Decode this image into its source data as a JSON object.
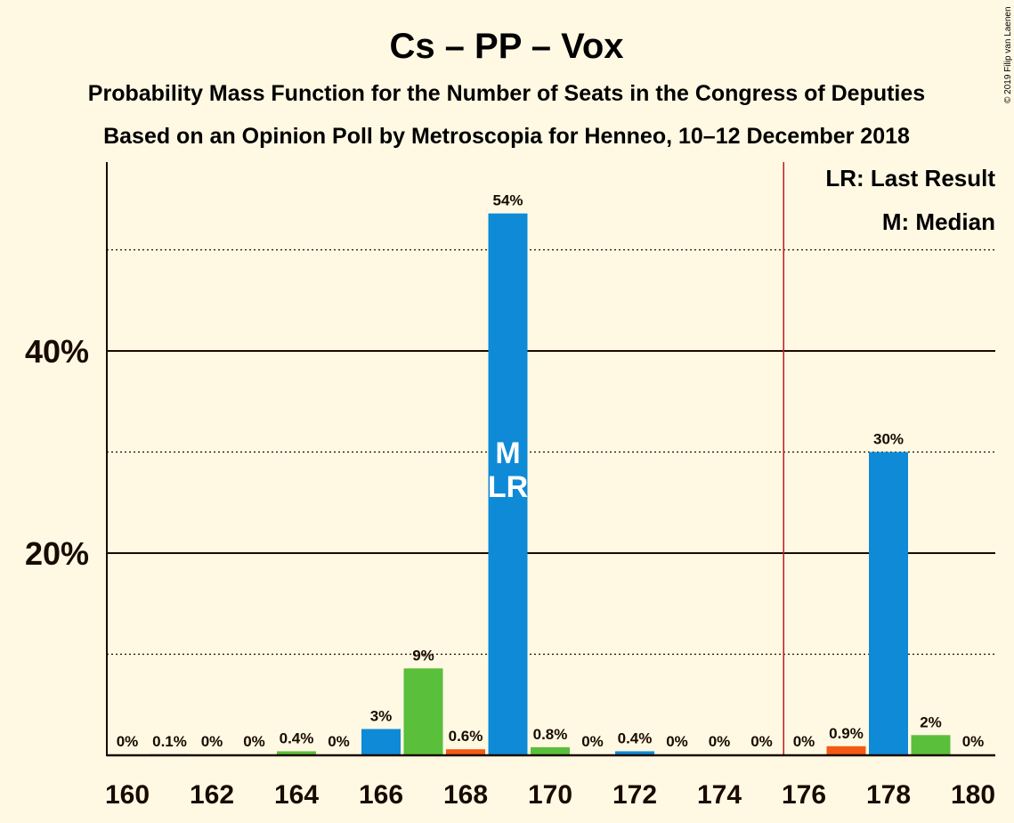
{
  "chart_data": {
    "type": "bar",
    "title": "Cs – PP – Vox",
    "subtitle_lines": [
      "Probability Mass Function for the Number of Seats in the Congress of Deputies",
      "Based on an Opinion Poll by Metroscopia for Henneo, 10–12 December 2018"
    ],
    "copyright": "© 2019 Filip van Laenen",
    "xlim": [
      160,
      180
    ],
    "ylim": [
      0,
      58
    ],
    "x_ticks": [
      "160",
      "162",
      "164",
      "166",
      "168",
      "170",
      "172",
      "174",
      "176",
      "178",
      "180"
    ],
    "y_ticks": [
      {
        "value": 20,
        "label": "20%"
      },
      {
        "value": 40,
        "label": "40%"
      }
    ],
    "minor_gridlines": [
      10,
      30,
      50
    ],
    "majority_line_x": 175.5,
    "bars": [
      {
        "x": 160,
        "value": 0,
        "label": "0%",
        "color": "#0f8ad6"
      },
      {
        "x": 161,
        "value": 0.1,
        "label": "0.1%",
        "color": "#0f8ad6"
      },
      {
        "x": 162,
        "value": 0,
        "label": "0%",
        "color": "#0f8ad6"
      },
      {
        "x": 163,
        "value": 0,
        "label": "0%",
        "color": "#0f8ad6"
      },
      {
        "x": 164,
        "value": 0.4,
        "label": "0.4%",
        "color": "#5abf3a"
      },
      {
        "x": 165,
        "value": 0,
        "label": "0%",
        "color": "#0f8ad6"
      },
      {
        "x": 166,
        "value": 2.6,
        "label": "3%",
        "color": "#0f8ad6"
      },
      {
        "x": 167,
        "value": 8.6,
        "label": "9%",
        "color": "#5abf3a"
      },
      {
        "x": 168,
        "value": 0.6,
        "label": "0.6%",
        "color": "#f45a14"
      },
      {
        "x": 169,
        "value": 53.6,
        "label": "54%",
        "color": "#0f8ad6",
        "marks": [
          "M",
          "LR"
        ]
      },
      {
        "x": 170,
        "value": 0.8,
        "label": "0.8%",
        "color": "#5abf3a"
      },
      {
        "x": 171,
        "value": 0,
        "label": "0%",
        "color": "#0f8ad6"
      },
      {
        "x": 172,
        "value": 0.4,
        "label": "0.4%",
        "color": "#0f8ad6"
      },
      {
        "x": 173,
        "value": 0,
        "label": "0%",
        "color": "#0f8ad6"
      },
      {
        "x": 174,
        "value": 0,
        "label": "0%",
        "color": "#0f8ad6"
      },
      {
        "x": 175,
        "value": 0,
        "label": "0%",
        "color": "#0f8ad6"
      },
      {
        "x": 176,
        "value": 0,
        "label": "0%",
        "color": "#0f8ad6"
      },
      {
        "x": 177,
        "value": 0.9,
        "label": "0.9%",
        "color": "#f45a14"
      },
      {
        "x": 178,
        "value": 30,
        "label": "30%",
        "color": "#0f8ad6"
      },
      {
        "x": 179,
        "value": 2,
        "label": "2%",
        "color": "#5abf3a"
      },
      {
        "x": 180,
        "value": 0,
        "label": "0%",
        "color": "#0f8ad6"
      }
    ],
    "legend": [
      "LR: Last Result",
      "M: Median"
    ],
    "legend_position": "top-right",
    "colors": {
      "background": "#fff9e3",
      "text": "#1a0a00",
      "majority_line": "#c0181e",
      "mark_text": "#ffffff"
    }
  }
}
